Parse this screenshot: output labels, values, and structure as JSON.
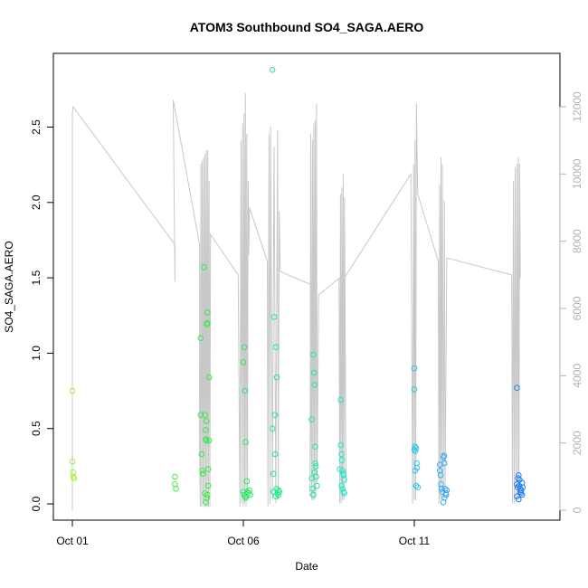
{
  "chart_data": {
    "type": "scatter",
    "title": "ATOM3 Southbound SO4_SAGA.AERO",
    "xlabel": "Date",
    "ylabel": "SO4_SAGA.AERO",
    "x_ticks": [
      {
        "day": 1,
        "label": "Oct 01"
      },
      {
        "day": 6,
        "label": "Oct 06"
      },
      {
        "day": 11,
        "label": "Oct 11"
      }
    ],
    "y_ticks": [
      {
        "value": 0.0,
        "label": "0.0"
      },
      {
        "value": 0.5,
        "label": "0.5"
      },
      {
        "value": 1.0,
        "label": "1.0"
      },
      {
        "value": 1.5,
        "label": "1.5"
      },
      {
        "value": 2.0,
        "label": "2.0"
      },
      {
        "value": 2.5,
        "label": "2.5"
      }
    ],
    "y2_ticks": [
      {
        "value": 0,
        "label": "0"
      },
      {
        "value": 2000,
        "label": "2000"
      },
      {
        "value": 4000,
        "label": "4000"
      },
      {
        "value": 6000,
        "label": "6000"
      },
      {
        "value": 8000,
        "label": "8000"
      },
      {
        "value": 10000,
        "label": "10000"
      },
      {
        "value": 12000,
        "label": "12000"
      }
    ],
    "grid": false,
    "legend": "none",
    "colors": {
      "altitude_line": "#c8c8c8",
      "right_axis": "#b0b0b0",
      "point_gradient": [
        "#a6f23a",
        "#55f03c",
        "#2ee850",
        "#22e8a0",
        "#1ee6e6",
        "#3aa8f0",
        "#1e7ef0"
      ]
    },
    "series": [
      {
        "role": "points",
        "points": [
          [
            1.0,
            0.75
          ],
          [
            1.0,
            0.28
          ],
          [
            1.02,
            0.21
          ],
          [
            1.03,
            0.18
          ],
          [
            1.05,
            0.17
          ],
          [
            4.0,
            0.18
          ],
          [
            4.0,
            0.13
          ],
          [
            4.03,
            0.1
          ],
          [
            4.75,
            0.59
          ],
          [
            4.75,
            1.1
          ],
          [
            4.78,
            0.33
          ],
          [
            4.8,
            0.22
          ],
          [
            4.82,
            0.2
          ],
          [
            4.85,
            1.57
          ],
          [
            4.88,
            0.59
          ],
          [
            4.9,
            0.49
          ],
          [
            4.9,
            0.43
          ],
          [
            4.92,
            0.42
          ],
          [
            4.92,
            0.55
          ],
          [
            4.93,
            1.19
          ],
          [
            4.95,
            1.27
          ],
          [
            4.95,
            1.2
          ],
          [
            4.97,
            0.23
          ],
          [
            4.97,
            0.12
          ],
          [
            5.0,
            0.84
          ],
          [
            5.0,
            0.42
          ],
          [
            4.88,
            0.07
          ],
          [
            4.9,
            0.01
          ],
          [
            4.93,
            0.04
          ],
          [
            4.95,
            0.06
          ],
          [
            6.0,
            0.94
          ],
          [
            6.03,
            1.04
          ],
          [
            6.05,
            0.75
          ],
          [
            6.07,
            0.41
          ],
          [
            6.0,
            0.08
          ],
          [
            6.02,
            0.06
          ],
          [
            6.05,
            0.05
          ],
          [
            6.07,
            0.04
          ],
          [
            6.1,
            0.15
          ],
          [
            6.12,
            0.08
          ],
          [
            6.15,
            0.07
          ],
          [
            6.17,
            0.09
          ],
          [
            6.2,
            0.06
          ],
          [
            6.85,
            2.88
          ],
          [
            6.85,
            0.5
          ],
          [
            6.88,
            0.2
          ],
          [
            6.88,
            0.08
          ],
          [
            6.9,
            1.24
          ],
          [
            6.92,
            0.59
          ],
          [
            6.93,
            0.33
          ],
          [
            6.95,
            1.04
          ],
          [
            6.97,
            0.1
          ],
          [
            6.98,
            0.84
          ],
          [
            7.0,
            0.07
          ],
          [
            7.02,
            0.06
          ],
          [
            7.03,
            0.09
          ],
          [
            6.95,
            0.05
          ],
          [
            7.05,
            0.08
          ],
          [
            8.0,
            0.56
          ],
          [
            8.05,
            0.99
          ],
          [
            8.07,
            0.87
          ],
          [
            8.08,
            0.79
          ],
          [
            8.1,
            0.38
          ],
          [
            8.1,
            0.27
          ],
          [
            8.12,
            0.25
          ],
          [
            8.13,
            0.18
          ],
          [
            8.15,
            0.12
          ],
          [
            8.0,
            0.17
          ],
          [
            8.02,
            0.1
          ],
          [
            8.05,
            0.06
          ],
          [
            8.08,
            0.21
          ],
          [
            8.85,
            0.69
          ],
          [
            8.85,
            0.39
          ],
          [
            8.87,
            0.33
          ],
          [
            8.88,
            0.29
          ],
          [
            8.9,
            0.22
          ],
          [
            8.92,
            0.2
          ],
          [
            8.93,
            0.19
          ],
          [
            8.95,
            0.16
          ],
          [
            8.87,
            0.12
          ],
          [
            8.9,
            0.1
          ],
          [
            8.93,
            0.08
          ],
          [
            8.95,
            0.07
          ],
          [
            8.82,
            0.23
          ],
          [
            11.0,
            0.9
          ],
          [
            11.0,
            0.76
          ],
          [
            11.02,
            0.38
          ],
          [
            11.03,
            0.35
          ],
          [
            11.05,
            0.37
          ],
          [
            11.07,
            0.27
          ],
          [
            11.08,
            0.24
          ],
          [
            11.05,
            0.12
          ],
          [
            11.1,
            0.11
          ],
          [
            11.0,
            0.36
          ],
          [
            11.02,
            0.22
          ],
          [
            11.75,
            0.26
          ],
          [
            11.75,
            0.22
          ],
          [
            11.77,
            0.19
          ],
          [
            11.78,
            0.13
          ],
          [
            11.8,
            0.1
          ],
          [
            11.82,
            0.08
          ],
          [
            11.85,
            0.31
          ],
          [
            11.87,
            0.32
          ],
          [
            11.88,
            0.27
          ],
          [
            11.9,
            0.1
          ],
          [
            11.92,
            0.07
          ],
          [
            11.93,
            0.06
          ],
          [
            11.85,
            0.01
          ],
          [
            11.88,
            0.04
          ],
          [
            11.95,
            0.09
          ],
          [
            14.0,
            0.77
          ],
          [
            14.0,
            0.13
          ],
          [
            14.02,
            0.11
          ],
          [
            14.03,
            0.17
          ],
          [
            14.05,
            0.19
          ],
          [
            14.07,
            0.12
          ],
          [
            14.08,
            0.16
          ],
          [
            14.1,
            0.1
          ],
          [
            14.12,
            0.07
          ],
          [
            14.13,
            0.09
          ],
          [
            14.15,
            0.06
          ],
          [
            14.0,
            0.05
          ],
          [
            14.05,
            0.03
          ],
          [
            14.1,
            0.08
          ],
          [
            14.17,
            0.11
          ],
          [
            14.15,
            0.14
          ]
        ]
      },
      {
        "role": "altitude_line",
        "axis": "right",
        "points": [
          [
            1.0,
            0
          ],
          [
            1.0,
            11800
          ],
          [
            1.02,
            12000
          ],
          [
            4.0,
            7900
          ],
          [
            4.0,
            6800
          ],
          [
            3.95,
            12200
          ],
          [
            4.72,
            7900
          ],
          [
            4.72,
            2000
          ],
          [
            4.74,
            100
          ],
          [
            4.76,
            10300
          ],
          [
            4.78,
            100
          ],
          [
            4.8,
            10400
          ],
          [
            4.82,
            200
          ],
          [
            4.84,
            10500
          ],
          [
            4.86,
            100
          ],
          [
            4.88,
            10600
          ],
          [
            4.9,
            100
          ],
          [
            4.92,
            10700
          ],
          [
            4.94,
            100
          ],
          [
            4.96,
            10700
          ],
          [
            4.98,
            100
          ],
          [
            5.0,
            9800
          ],
          [
            5.02,
            100
          ],
          [
            5.04,
            8200
          ],
          [
            5.85,
            7000
          ],
          [
            5.9,
            100
          ],
          [
            5.93,
            11000
          ],
          [
            5.95,
            200
          ],
          [
            5.98,
            11500
          ],
          [
            6.0,
            100
          ],
          [
            6.02,
            11800
          ],
          [
            6.04,
            200
          ],
          [
            6.06,
            12400
          ],
          [
            6.08,
            100
          ],
          [
            6.1,
            11200
          ],
          [
            6.12,
            300
          ],
          [
            6.14,
            9800
          ],
          [
            6.16,
            7600
          ],
          [
            6.18,
            9000
          ],
          [
            6.7,
            7400
          ],
          [
            6.72,
            100
          ],
          [
            6.75,
            11200
          ],
          [
            6.78,
            200
          ],
          [
            6.8,
            11400
          ],
          [
            6.85,
            300
          ],
          [
            6.9,
            10800
          ],
          [
            6.95,
            200
          ],
          [
            7.0,
            11300
          ],
          [
            7.02,
            300
          ],
          [
            7.05,
            8900
          ],
          [
            7.08,
            7100
          ],
          [
            8.0,
            6700
          ],
          [
            7.95,
            400
          ],
          [
            7.97,
            11200
          ],
          [
            8.0,
            300
          ],
          [
            8.02,
            11000
          ],
          [
            8.04,
            300
          ],
          [
            8.06,
            11500
          ],
          [
            8.08,
            300
          ],
          [
            8.1,
            11600
          ],
          [
            8.12,
            400
          ],
          [
            8.14,
            12100
          ],
          [
            8.16,
            800
          ],
          [
            8.2,
            6400
          ],
          [
            8.8,
            6900
          ],
          [
            8.82,
            200
          ],
          [
            8.84,
            9400
          ],
          [
            8.86,
            200
          ],
          [
            8.88,
            9600
          ],
          [
            8.9,
            300
          ],
          [
            8.92,
            10000
          ],
          [
            8.94,
            300
          ],
          [
            8.96,
            9300
          ],
          [
            9.0,
            800
          ],
          [
            8.95,
            6900
          ],
          [
            10.9,
            10000
          ],
          [
            10.95,
            200
          ],
          [
            10.98,
            10300
          ],
          [
            11.0,
            300
          ],
          [
            11.02,
            11000
          ],
          [
            11.04,
            300
          ],
          [
            11.06,
            12100
          ],
          [
            11.1,
            9400
          ],
          [
            11.7,
            7400
          ],
          [
            11.72,
            200
          ],
          [
            11.74,
            9700
          ],
          [
            11.76,
            300
          ],
          [
            11.78,
            10500
          ],
          [
            11.8,
            400
          ],
          [
            11.82,
            10300
          ],
          [
            11.85,
            300
          ],
          [
            11.88,
            9200
          ],
          [
            11.9,
            500
          ],
          [
            11.95,
            7500
          ],
          [
            13.85,
            7000
          ],
          [
            13.87,
            200
          ],
          [
            13.9,
            9800
          ],
          [
            13.92,
            200
          ],
          [
            13.95,
            10200
          ],
          [
            13.97,
            300
          ],
          [
            14.0,
            10300
          ],
          [
            14.02,
            400
          ],
          [
            14.04,
            10500
          ],
          [
            14.06,
            500
          ],
          [
            14.08,
            10300
          ],
          [
            14.1,
            6900
          ]
        ]
      }
    ]
  }
}
